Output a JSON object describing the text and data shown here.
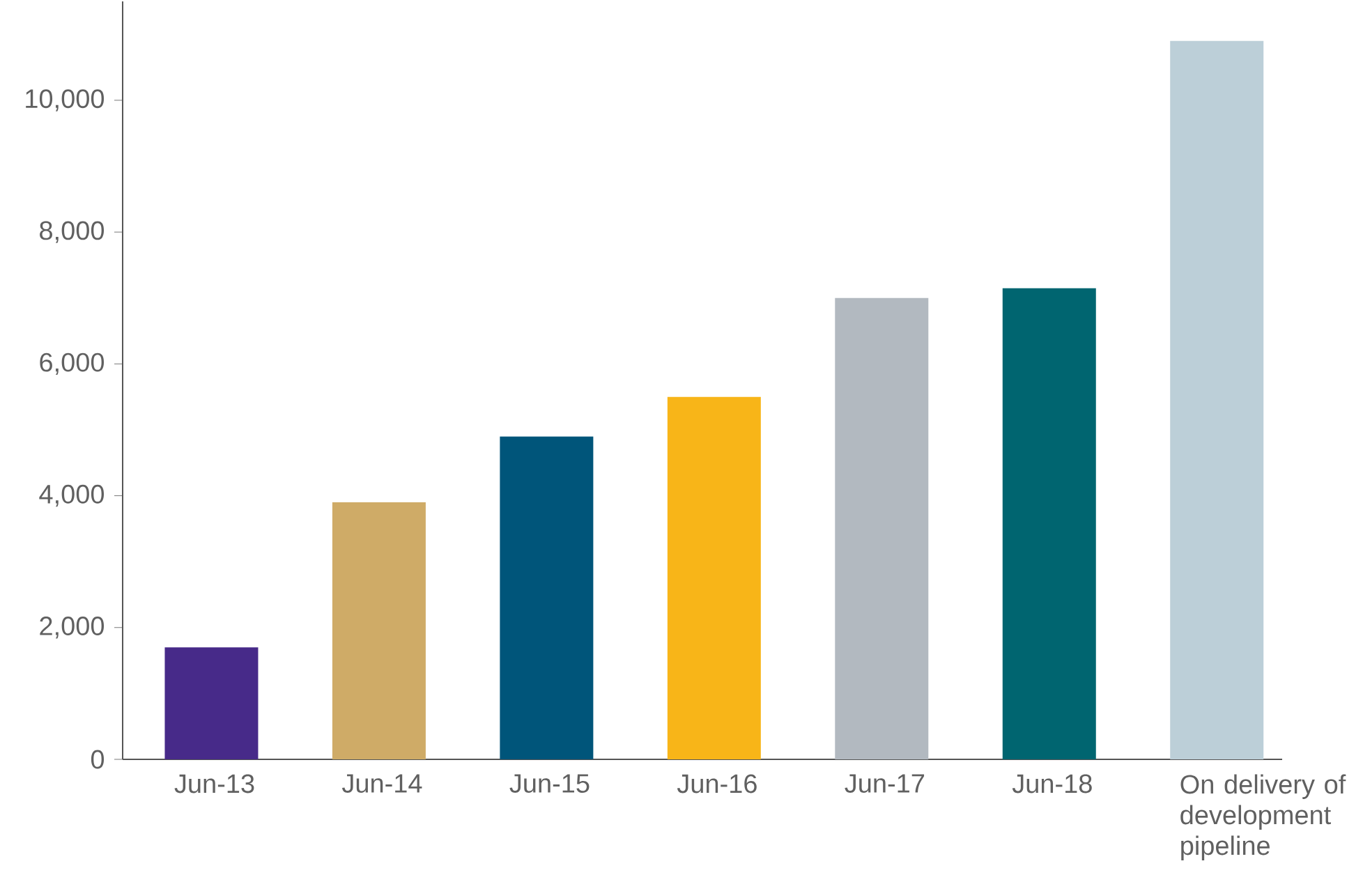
{
  "chart_data": {
    "type": "bar",
    "categories": [
      "Jun-13",
      "Jun-14",
      "Jun-15",
      "Jun-16",
      "Jun-17",
      "Jun-18",
      "On delivery of development pipeline"
    ],
    "values": [
      1700,
      3900,
      4900,
      5500,
      7000,
      7150,
      10900
    ],
    "colors": [
      "#472a89",
      "#cfab67",
      "#00557a",
      "#f8b518",
      "#b2b9c0",
      "#006570",
      "#bccfd8"
    ],
    "ylim": [
      0,
      11500
    ],
    "yticks": [
      0,
      {
        "value": 2000,
        "label": "2,000"
      },
      {
        "value": 4000,
        "label": "4,000"
      },
      {
        "value": 6000,
        "label": "6,000"
      },
      {
        "value": 8000,
        "label": "8,000"
      },
      {
        "value": 10000,
        "label": "10,000"
      }
    ],
    "grid": false
  }
}
